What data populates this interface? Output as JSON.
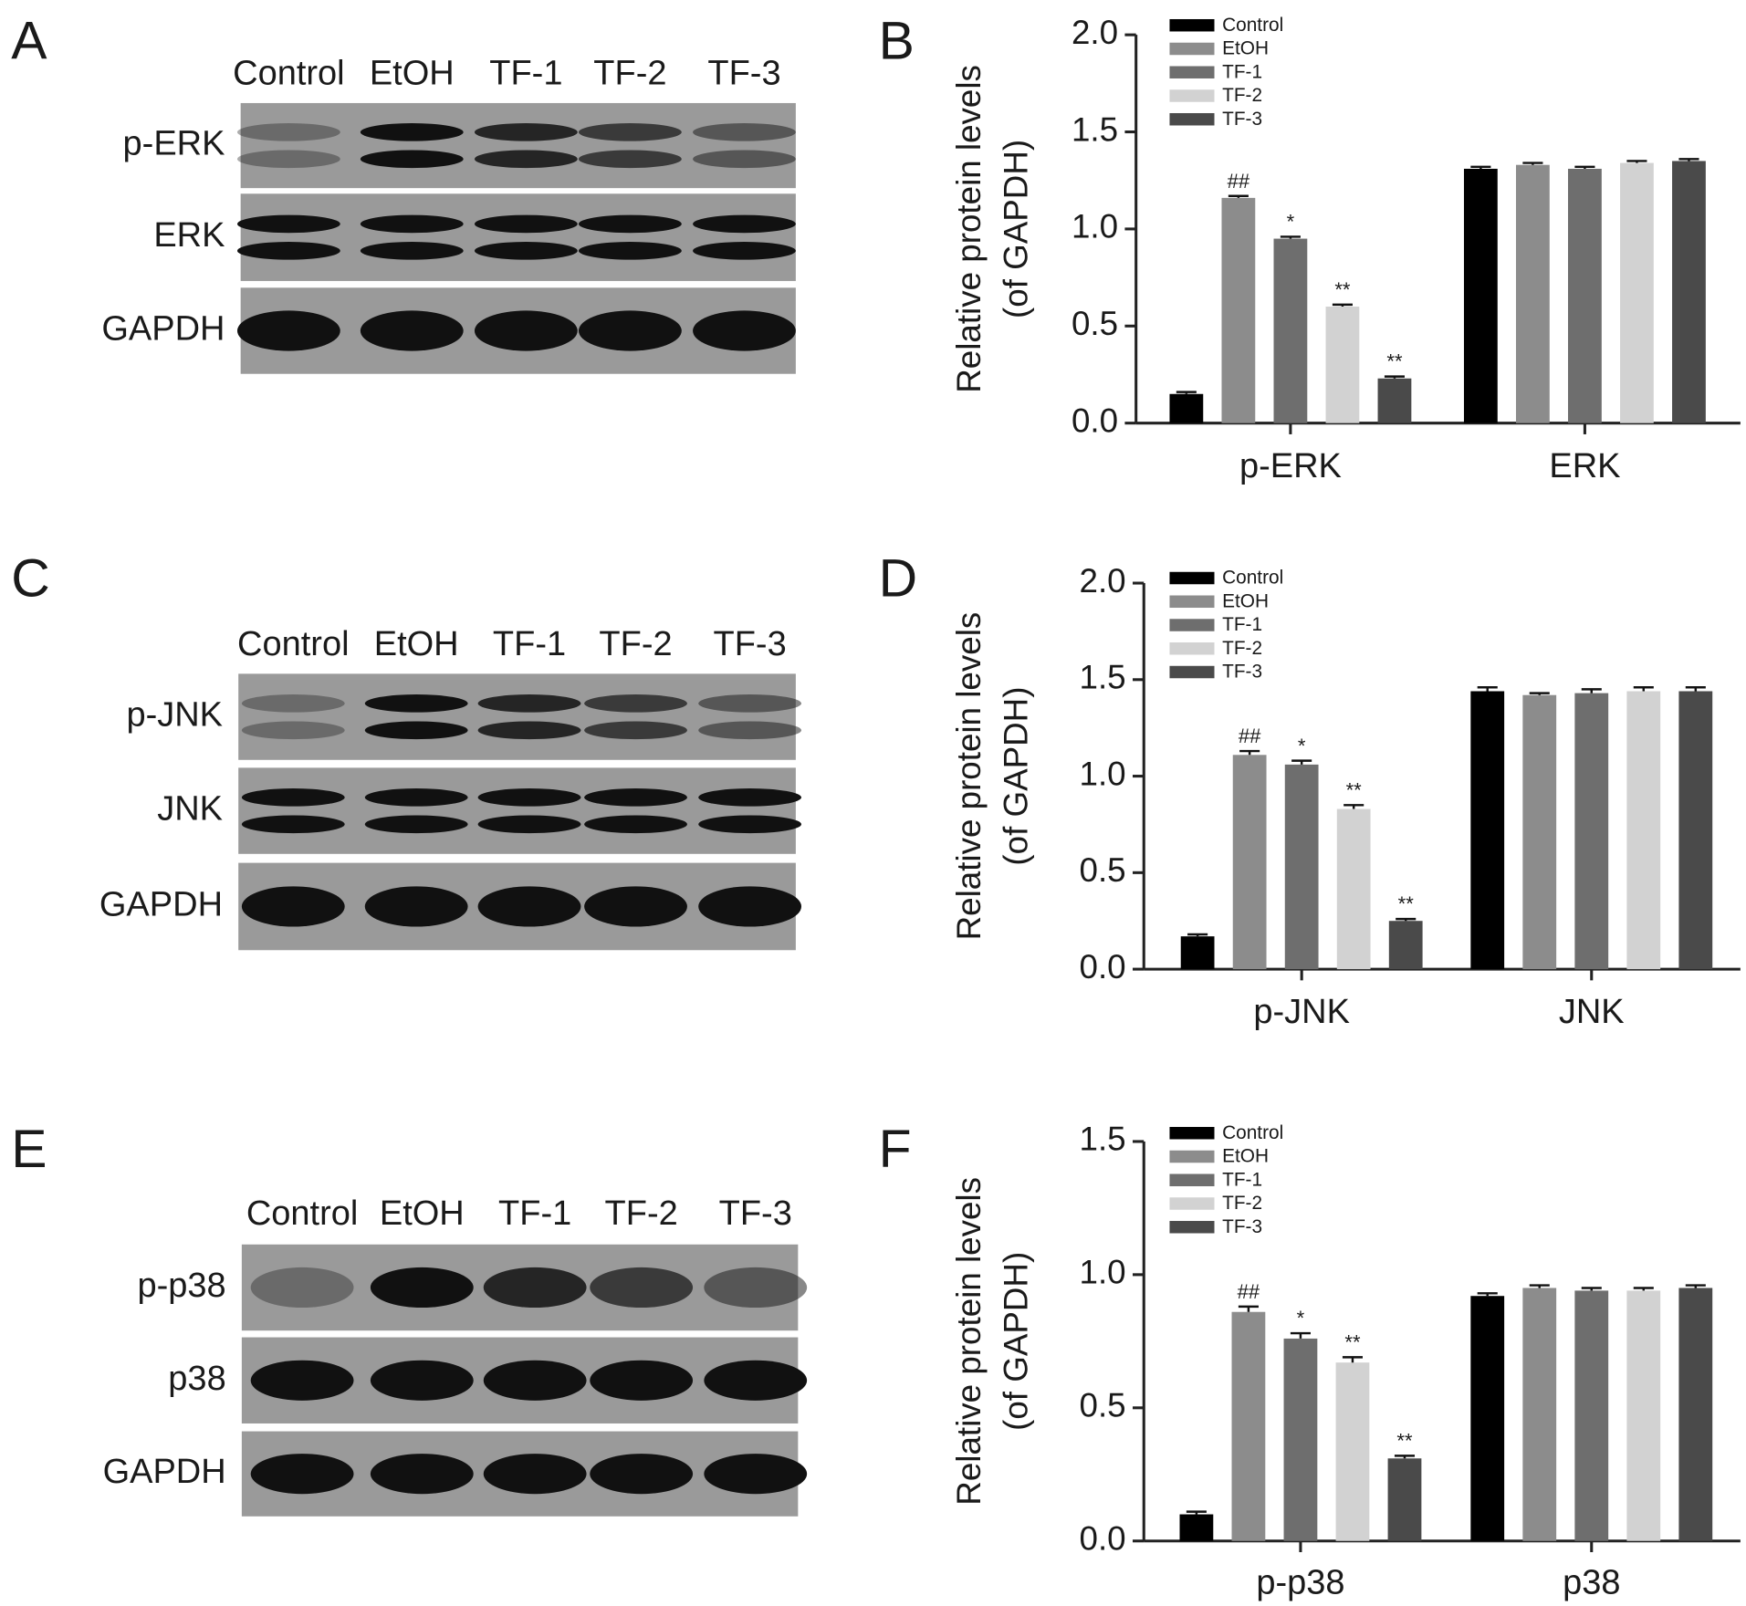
{
  "blots": [
    {
      "letter": "A",
      "lanes": [
        "Control",
        "EtOH",
        "TF-1",
        "TF-2",
        "TF-3"
      ],
      "rows": [
        "p-ERK",
        "ERK",
        "GAPDH"
      ]
    },
    {
      "letter": "C",
      "lanes": [
        "Control",
        "EtOH",
        "TF-1",
        "TF-2",
        "TF-3"
      ],
      "rows": [
        "p-JNK",
        "JNK",
        "GAPDH"
      ]
    },
    {
      "letter": "E",
      "lanes": [
        "Control",
        "EtOH",
        "TF-1",
        "TF-2",
        "TF-3"
      ],
      "rows": [
        "p-p38",
        "p38",
        "GAPDH"
      ]
    }
  ],
  "chart_data": [
    {
      "type": "bar",
      "letter": "B",
      "ylabel": [
        "Relative protein levels",
        "(of GAPDH)"
      ],
      "categories": [
        "p-ERK",
        "ERK"
      ],
      "ylim": [
        0,
        2
      ],
      "yticks": [
        {
          "value": 0,
          "label": "0.0"
        },
        {
          "value": 0.5,
          "label": "0.5"
        },
        {
          "value": 1,
          "label": "1.0"
        },
        {
          "value": 1.5,
          "label": "1.5"
        },
        {
          "value": 2,
          "label": "2.0"
        }
      ],
      "series": [
        {
          "name": "Control",
          "color": "#000000",
          "values": [
            0.15,
            1.31
          ],
          "errors": [
            0.01,
            0.01
          ],
          "annotations": [
            null,
            null
          ]
        },
        {
          "name": "EtOH",
          "color": "#8c8c8c",
          "values": [
            1.16,
            1.33
          ],
          "errors": [
            0.01,
            0.01
          ],
          "annotations": [
            "##",
            null
          ]
        },
        {
          "name": "TF-1",
          "color": "#6e6e6e",
          "values": [
            0.95,
            1.31
          ],
          "errors": [
            0.01,
            0.01
          ],
          "annotations": [
            "*",
            null
          ]
        },
        {
          "name": "TF-2",
          "color": "#d2d2d2",
          "values": [
            0.6,
            1.34
          ],
          "errors": [
            0.01,
            0.01
          ],
          "annotations": [
            "**",
            null
          ]
        },
        {
          "name": "TF-3",
          "color": "#4a4a4a",
          "values": [
            0.23,
            1.35
          ],
          "errors": [
            0.01,
            0.01
          ],
          "annotations": [
            "**",
            null
          ]
        }
      ]
    },
    {
      "type": "bar",
      "letter": "D",
      "ylabel": [
        "Relative protein levels",
        "(of GAPDH)"
      ],
      "categories": [
        "p-JNK",
        "JNK"
      ],
      "ylim": [
        0,
        2
      ],
      "yticks": [
        {
          "value": 0,
          "label": "0.0"
        },
        {
          "value": 0.5,
          "label": "0.5"
        },
        {
          "value": 1,
          "label": "1.0"
        },
        {
          "value": 1.5,
          "label": "1.5"
        },
        {
          "value": 2,
          "label": "2.0"
        }
      ],
      "series": [
        {
          "name": "Control",
          "color": "#000000",
          "values": [
            0.17,
            1.44
          ],
          "errors": [
            0.01,
            0.02
          ],
          "annotations": [
            null,
            null
          ]
        },
        {
          "name": "EtOH",
          "color": "#8c8c8c",
          "values": [
            1.11,
            1.42
          ],
          "errors": [
            0.02,
            0.01
          ],
          "annotations": [
            "##",
            null
          ]
        },
        {
          "name": "TF-1",
          "color": "#6e6e6e",
          "values": [
            1.06,
            1.43
          ],
          "errors": [
            0.02,
            0.02
          ],
          "annotations": [
            "*",
            null
          ]
        },
        {
          "name": "TF-2",
          "color": "#d2d2d2",
          "values": [
            0.83,
            1.44
          ],
          "errors": [
            0.02,
            0.02
          ],
          "annotations": [
            "**",
            null
          ]
        },
        {
          "name": "TF-3",
          "color": "#4a4a4a",
          "values": [
            0.25,
            1.44
          ],
          "errors": [
            0.01,
            0.02
          ],
          "annotations": [
            "**",
            null
          ]
        }
      ]
    },
    {
      "type": "bar",
      "letter": "F",
      "ylabel": [
        "Relative protein levels",
        "(of GAPDH)"
      ],
      "categories": [
        "p-p38",
        "p38"
      ],
      "ylim": [
        0,
        1.5
      ],
      "yticks": [
        {
          "value": 0,
          "label": "0.0"
        },
        {
          "value": 0.5,
          "label": "0.5"
        },
        {
          "value": 1,
          "label": "1.0"
        },
        {
          "value": 1.5,
          "label": "1.5"
        }
      ],
      "series": [
        {
          "name": "Control",
          "color": "#000000",
          "values": [
            0.1,
            0.92
          ],
          "errors": [
            0.01,
            0.01
          ],
          "annotations": [
            null,
            null
          ]
        },
        {
          "name": "EtOH",
          "color": "#8c8c8c",
          "values": [
            0.86,
            0.95
          ],
          "errors": [
            0.02,
            0.01
          ],
          "annotations": [
            "##",
            null
          ]
        },
        {
          "name": "TF-1",
          "color": "#6e6e6e",
          "values": [
            0.76,
            0.94
          ],
          "errors": [
            0.02,
            0.01
          ],
          "annotations": [
            "*",
            null
          ]
        },
        {
          "name": "TF-2",
          "color": "#d2d2d2",
          "values": [
            0.67,
            0.94
          ],
          "errors": [
            0.02,
            0.01
          ],
          "annotations": [
            "**",
            null
          ]
        },
        {
          "name": "TF-3",
          "color": "#4a4a4a",
          "values": [
            0.31,
            0.95
          ],
          "errors": [
            0.01,
            0.01
          ],
          "annotations": [
            "**",
            null
          ]
        }
      ]
    }
  ]
}
